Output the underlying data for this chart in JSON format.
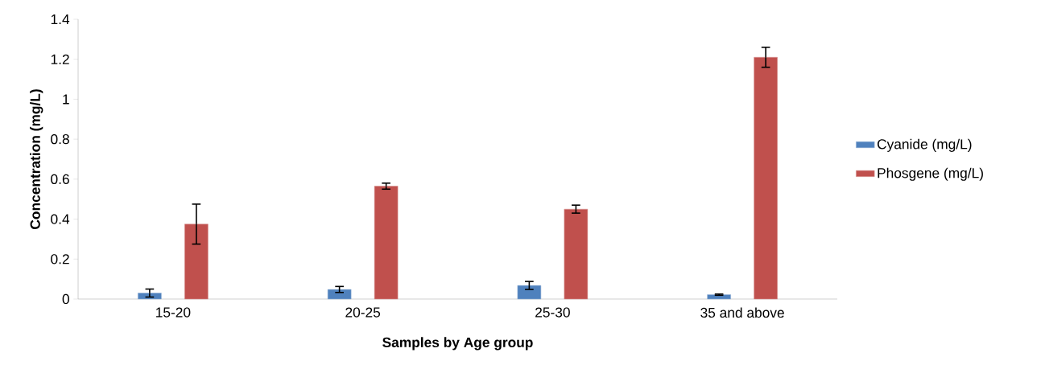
{
  "chart_data": {
    "type": "bar",
    "xlabel": "Samples by Age group",
    "ylabel": "Concentration (mg/L)",
    "categories": [
      "15-20",
      "20-25",
      "25-30",
      "35 and above"
    ],
    "series": [
      {
        "name": "Cyanide (mg/L)",
        "color": "#4f81bd",
        "values": [
          0.03,
          0.048,
          0.068,
          0.022
        ],
        "errors": [
          0.02,
          0.015,
          0.02,
          0.003
        ]
      },
      {
        "name": "Phosgene (mg/L)",
        "color": "#c0504d",
        "values": [
          0.375,
          0.565,
          0.45,
          1.21
        ],
        "errors": [
          0.1,
          0.015,
          0.02,
          0.05
        ]
      }
    ],
    "ylim": [
      0,
      1.4
    ],
    "yticks": [
      0,
      0.2,
      0.4,
      0.6,
      0.8,
      1,
      1.2,
      1.4
    ],
    "grid": false,
    "legend": "right"
  }
}
